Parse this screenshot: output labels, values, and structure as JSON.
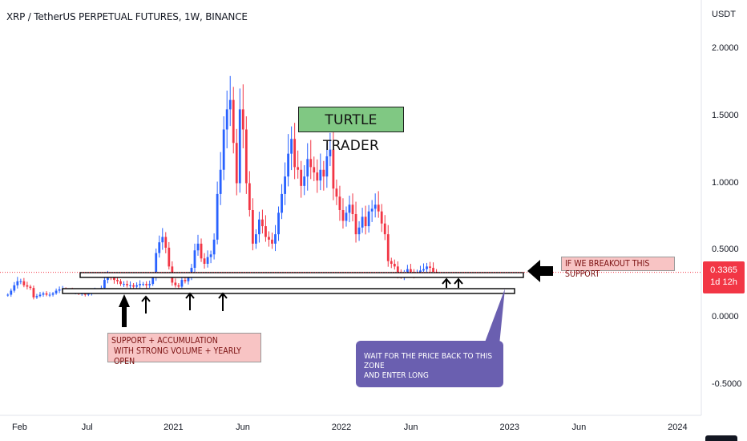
{
  "chart_data": {
    "type": "candlestick",
    "title": "XRP / TetherUS PERPETUAL FUTURES, 1W, BINANCE",
    "currency": "USDT",
    "ylim": [
      -0.6,
      2.1
    ],
    "y_ticks": [
      {
        "value": 2.0,
        "label": "2.0000"
      },
      {
        "value": 1.5,
        "label": "1.5000"
      },
      {
        "value": 1.0,
        "label": "1.0000"
      },
      {
        "value": 0.5,
        "label": "0.5000"
      },
      {
        "value": 0.0,
        "label": "0.0000"
      },
      {
        "value": -0.5,
        "label": "-0.5000"
      }
    ],
    "x_ticks": [
      {
        "date": "2020-02-01",
        "label": "Feb"
      },
      {
        "date": "2020-07-01",
        "label": "Jul"
      },
      {
        "date": "2021-01-01",
        "label": "2021"
      },
      {
        "date": "2021-06-01",
        "label": "Jun"
      },
      {
        "date": "2022-01-01",
        "label": "2022"
      },
      {
        "date": "2022-06-01",
        "label": "Jun"
      },
      {
        "date": "2023-01-01",
        "label": "2023"
      },
      {
        "date": "2023-06-01",
        "label": "Jun"
      },
      {
        "date": "2024-01-01",
        "label": "2024"
      }
    ],
    "xlim": [
      "2019-12-20",
      "2024-02-15"
    ],
    "last_price": {
      "value": 0.3365,
      "label": "0.3365",
      "countdown": "1d 12h"
    },
    "colors": {
      "up": "#2962ff",
      "down": "#f23645",
      "accent": "#f23645"
    },
    "weekly_closes": [
      0.17,
      0.2,
      0.24,
      0.27,
      0.27,
      0.24,
      0.23,
      0.22,
      0.15,
      0.16,
      0.17,
      0.18,
      0.17,
      0.17,
      0.18,
      0.2,
      0.21,
      0.21,
      0.2,
      0.2,
      0.19,
      0.19,
      0.18,
      0.18,
      0.17,
      0.18,
      0.19,
      0.2,
      0.2,
      0.22,
      0.28,
      0.31,
      0.3,
      0.28,
      0.27,
      0.25,
      0.25,
      0.24,
      0.24,
      0.23,
      0.24,
      0.25,
      0.25,
      0.24,
      0.25,
      0.3,
      0.48,
      0.56,
      0.6,
      0.52,
      0.38,
      0.26,
      0.24,
      0.23,
      0.28,
      0.27,
      0.3,
      0.37,
      0.5,
      0.55,
      0.44,
      0.4,
      0.45,
      0.47,
      0.58,
      0.92,
      1.1,
      1.4,
      1.55,
      1.62,
      1.3,
      1.0,
      1.55,
      1.4,
      1.0,
      0.8,
      0.55,
      0.62,
      0.73,
      0.68,
      0.6,
      0.58,
      0.55,
      0.62,
      0.78,
      0.92,
      1.05,
      1.22,
      1.33,
      1.12,
      1.1,
      0.98,
      1.05,
      1.18,
      1.12,
      1.08,
      1.02,
      1.1,
      1.05,
      1.2,
      1.25,
      0.96,
      0.9,
      0.8,
      0.72,
      0.78,
      0.84,
      0.77,
      0.62,
      0.67,
      0.75,
      0.68,
      0.79,
      0.81,
      0.84,
      0.79,
      0.7,
      0.62,
      0.42,
      0.4,
      0.38,
      0.32,
      0.31,
      0.33,
      0.36,
      0.34,
      0.32,
      0.33,
      0.35,
      0.36,
      0.38,
      0.37,
      0.34,
      0.3365
    ],
    "start_date": "2020-01-06"
  },
  "annotations": {
    "turtle": "TURTLE TRADER",
    "support_line1": "SUPPORT + ACCUMULATION",
    "support_line2": "WITH STRONG VOLUME + YEARLY OPEN",
    "breakout": "IF WE BREAKOUT THIS SUPPORT",
    "wait_line1": "WAIT FOR THE PRICE BACK TO THIS ZONE",
    "wait_line2": "AND ENTER LONG"
  }
}
